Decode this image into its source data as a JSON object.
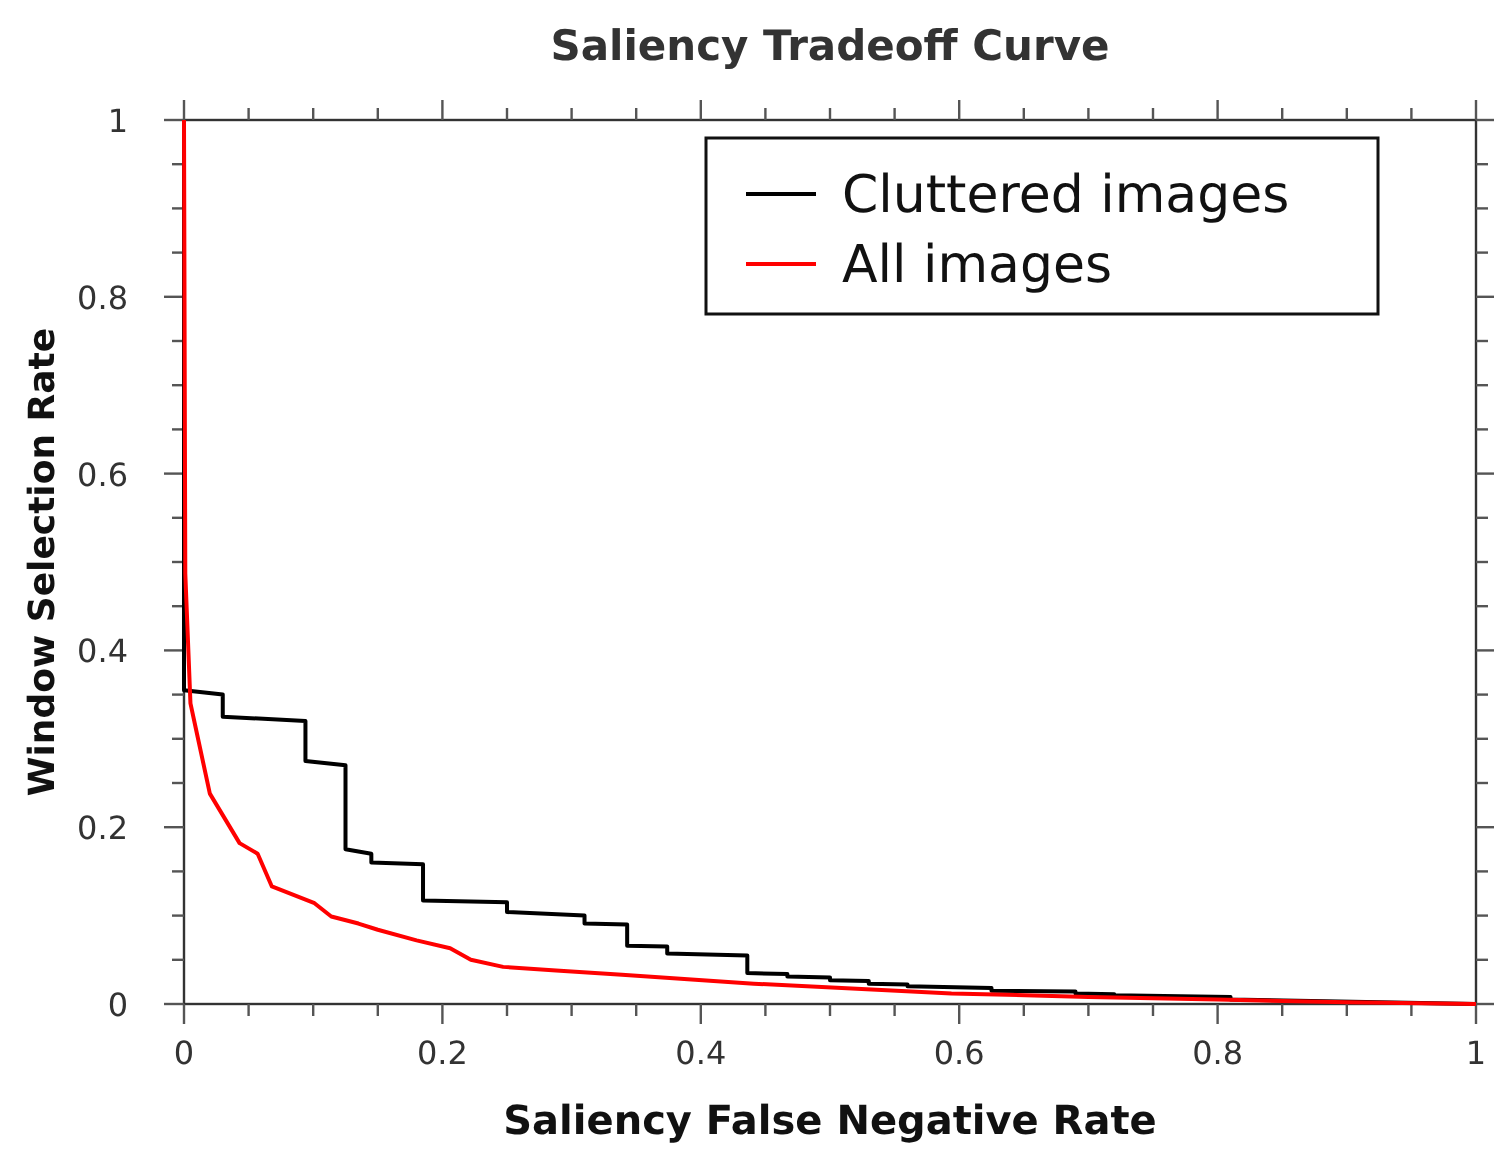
{
  "chart_data": {
    "type": "line",
    "title": "Saliency Tradeoff Curve",
    "xlabel": "Saliency False Negative Rate",
    "ylabel": "Window Selection Rate",
    "xlim": [
      0,
      1
    ],
    "ylim": [
      0,
      1
    ],
    "xticks": [
      0,
      {
        "value": 0.05,
        "label": null
      },
      {
        "value": 0.1,
        "label": null
      },
      {
        "value": 0.15,
        "label": null
      },
      0.2,
      {
        "value": 0.25,
        "label": null
      },
      {
        "value": 0.3,
        "label": null
      },
      {
        "value": 0.35,
        "label": null
      },
      0.4,
      {
        "value": 0.45,
        "label": null
      },
      {
        "value": 0.5,
        "label": null
      },
      {
        "value": 0.55,
        "label": null
      },
      0.6,
      {
        "value": 0.65,
        "label": null
      },
      {
        "value": 0.7,
        "label": null
      },
      {
        "value": 0.75,
        "label": null
      },
      0.8,
      {
        "value": 0.85,
        "label": null
      },
      {
        "value": 0.9,
        "label": null
      },
      {
        "value": 0.95,
        "label": null
      },
      1
    ],
    "yticks": [
      0,
      {
        "value": 0.05,
        "label": null
      },
      {
        "value": 0.1,
        "label": null
      },
      {
        "value": 0.15,
        "label": null
      },
      0.2,
      {
        "value": 0.25,
        "label": null
      },
      {
        "value": 0.3,
        "label": null
      },
      {
        "value": 0.35,
        "label": null
      },
      0.4,
      {
        "value": 0.45,
        "label": null
      },
      {
        "value": 0.5,
        "label": null
      },
      {
        "value": 0.55,
        "label": null
      },
      0.6,
      {
        "value": 0.65,
        "label": null
      },
      {
        "value": 0.7,
        "label": null
      },
      {
        "value": 0.75,
        "label": null
      },
      0.8,
      {
        "value": 0.85,
        "label": null
      },
      {
        "value": 0.9,
        "label": null
      },
      {
        "value": 0.95,
        "label": null
      },
      1
    ],
    "grid": false,
    "legend": "top right",
    "marker": "none",
    "line_style": "solid",
    "series": [
      {
        "name": "Cluttered images",
        "color": "#000000",
        "x": [
          0,
          0,
          0.03,
          0.03,
          0.094,
          0.094,
          0.125,
          0.125,
          0.145,
          0.145,
          0.185,
          0.185,
          0.25,
          0.25,
          0.31,
          0.31,
          0.343,
          0.343,
          0.374,
          0.374,
          0.436,
          0.436,
          0.467,
          0.467,
          0.5,
          0.5,
          0.53,
          0.53,
          0.56,
          0.56,
          0.625,
          0.625,
          0.69,
          0.69,
          0.72,
          0.72,
          0.81,
          0.81,
          1
        ],
        "values": [
          1,
          0.355,
          0.35,
          0.325,
          0.32,
          0.275,
          0.27,
          0.175,
          0.17,
          0.16,
          0.158,
          0.117,
          0.115,
          0.104,
          0.1,
          0.091,
          0.09,
          0.066,
          0.065,
          0.057,
          0.055,
          0.035,
          0.034,
          0.031,
          0.03,
          0.027,
          0.026,
          0.023,
          0.022,
          0.02,
          0.018,
          0.015,
          0.014,
          0.012,
          0.011,
          0.01,
          0.008,
          0.005,
          0
        ]
      },
      {
        "name": "All images",
        "color": "#ff0000",
        "x": [
          0,
          0.001,
          0.005,
          0.01,
          0.02,
          0.043,
          0.057,
          0.068,
          0.101,
          0.114,
          0.135,
          0.15,
          0.18,
          0.206,
          0.222,
          0.247,
          0.288,
          0.339,
          0.441,
          0.594,
          0.7,
          0.8,
          0.9,
          1
        ],
        "values": [
          1,
          0.487,
          0.34,
          0.306,
          0.238,
          0.182,
          0.17,
          0.133,
          0.114,
          0.099,
          0.091,
          0.084,
          0.072,
          0.063,
          0.05,
          0.042,
          0.038,
          0.033,
          0.023,
          0.012,
          0.008,
          0.005,
          0.002,
          0
        ]
      }
    ]
  }
}
